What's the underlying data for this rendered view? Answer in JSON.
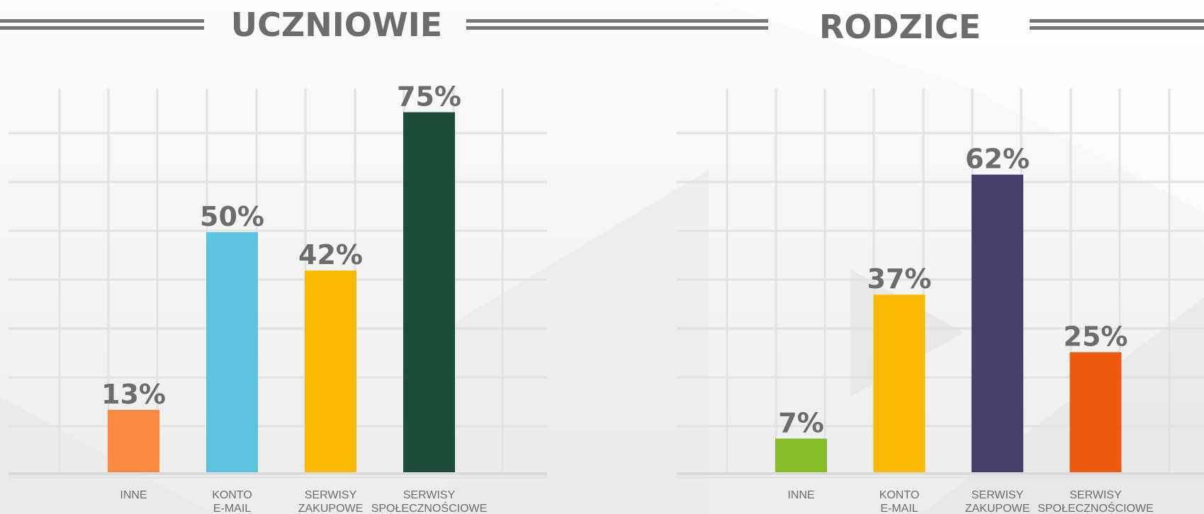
{
  "chart_data": [
    {
      "type": "bar",
      "title": "UCZNIOWIE",
      "categories": [
        [
          "INNE"
        ],
        [
          "KONTO",
          "E-MAIL"
        ],
        [
          "SERWISY",
          "ZAKUPOWE"
        ],
        [
          "SERWISY",
          "SPOŁECZNOŚCIOWE"
        ]
      ],
      "values": [
        13,
        50,
        42,
        75
      ],
      "value_labels": [
        "13%",
        "50%",
        "42%",
        "75%"
      ],
      "colors": [
        "#fa8a41",
        "#5bc2df",
        "#f9b802",
        "#1b4e38"
      ],
      "ylim": [
        0,
        80
      ],
      "grid": true
    },
    {
      "type": "bar",
      "title": "RODZICE",
      "categories": [
        [
          "INNE"
        ],
        [
          "KONTO",
          "E-MAIL"
        ],
        [
          "SERWISY",
          "ZAKUPOWE"
        ],
        [
          "SERWISY",
          "SPOŁECZNOŚCIOWE"
        ]
      ],
      "values": [
        7,
        37,
        62,
        25
      ],
      "value_labels": [
        "7%",
        "37%",
        "62%",
        "25%"
      ],
      "colors": [
        "#86bc26",
        "#f9b802",
        "#463f6c",
        "#eb5a0f"
      ],
      "ylim": [
        0,
        80
      ],
      "grid": true
    }
  ]
}
